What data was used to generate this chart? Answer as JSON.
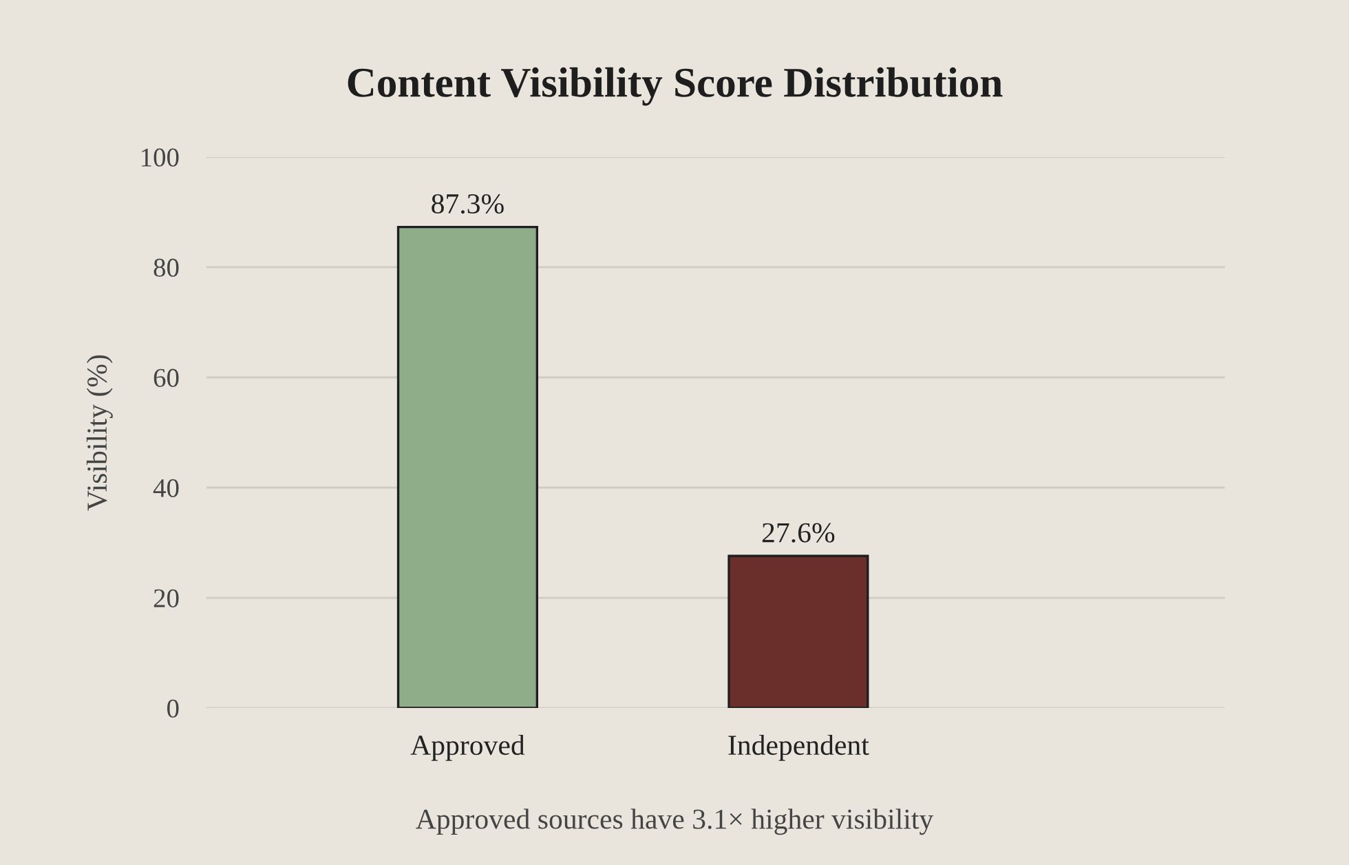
{
  "chart_data": {
    "type": "bar",
    "title": "Content Visibility Score Distribution",
    "ylabel": "Visibility (%)",
    "categories": [
      "Approved",
      "Independent"
    ],
    "values": [
      87.3,
      27.6
    ],
    "colors": [
      "#8fad88",
      "#6b2f2b"
    ],
    "value_labels": [
      "87.3%",
      "27.6%"
    ],
    "ylim": [
      0,
      100
    ],
    "yticks": [
      0,
      20,
      40,
      60,
      80,
      100
    ],
    "grid": "y",
    "annotations": [
      "Approved sources have 3.1× higher visibility"
    ]
  }
}
